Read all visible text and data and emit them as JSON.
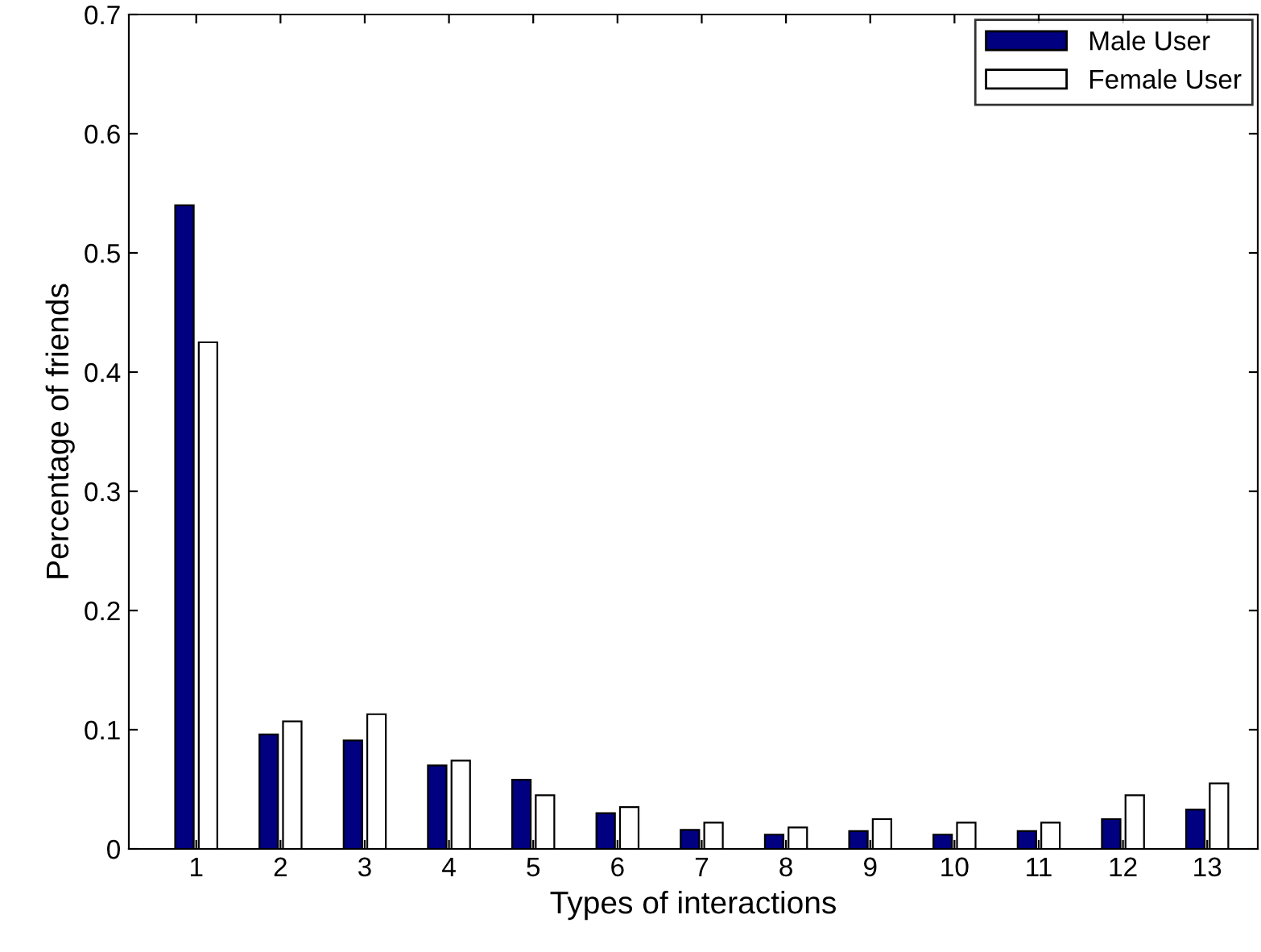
{
  "chart_data": {
    "type": "bar",
    "xlabel": "Types of interactions",
    "ylabel": "Percentage of friends",
    "categories": [
      "1",
      "2",
      "3",
      "4",
      "5",
      "6",
      "7",
      "8",
      "9",
      "10",
      "11",
      "12",
      "13"
    ],
    "series": [
      {
        "name": "Male User",
        "color": "#000080",
        "values": [
          0.54,
          0.096,
          0.091,
          0.07,
          0.058,
          0.03,
          0.016,
          0.012,
          0.015,
          0.012,
          0.015,
          0.025,
          0.033
        ]
      },
      {
        "name": "Female User",
        "color": "#ffffff",
        "values": [
          0.425,
          0.107,
          0.113,
          0.074,
          0.045,
          0.035,
          0.022,
          0.018,
          0.025,
          0.022,
          0.022,
          0.045,
          0.055
        ]
      }
    ],
    "ylim": [
      0,
      0.7
    ],
    "yticks": [
      0,
      0.1,
      0.2,
      0.3,
      0.4,
      0.5,
      0.6,
      0.7
    ],
    "grid": false,
    "legend": "top right"
  }
}
